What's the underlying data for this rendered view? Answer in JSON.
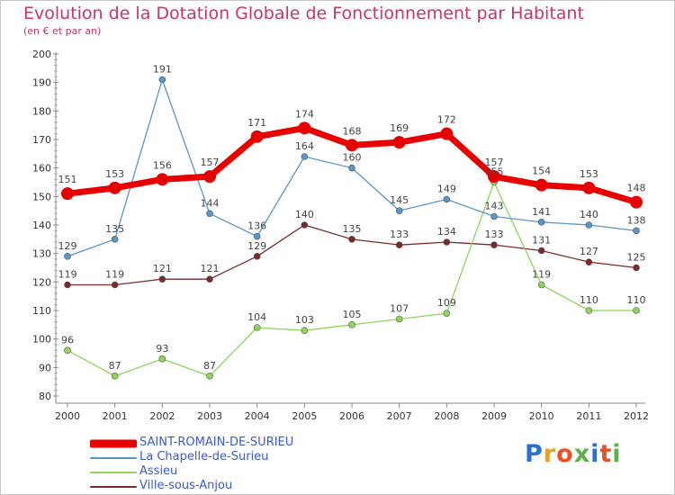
{
  "header": {
    "title": "Evolution de la Dotation Globale de Fonctionnement par Habitant",
    "subtitle": "(en € et par an)"
  },
  "logo": {
    "text": "Proxiti",
    "colors": [
      "#2f6ecb",
      "#e8a12a",
      "#5db04a",
      "#e8502a"
    ]
  },
  "chart_data": {
    "type": "line",
    "title": "Evolution de la Dotation Globale de Fonctionnement par Habitant",
    "subtitle": "(en € et par an)",
    "xlabel": "",
    "ylabel": "",
    "x": [
      "2000",
      "2001",
      "2002",
      "2003",
      "2004",
      "2005",
      "2006",
      "2007",
      "2008",
      "2009",
      "2010",
      "2011",
      "2012"
    ],
    "ylim": [
      80,
      200
    ],
    "yticks": [
      80,
      90,
      100,
      110,
      120,
      130,
      140,
      150,
      160,
      170,
      180,
      190,
      200
    ],
    "grid": false,
    "legend_position": "bottom-left",
    "series": [
      {
        "name": "SAINT-ROMAIN-DE-SURIEU",
        "color": "#e60000",
        "width": 7,
        "marker": 7,
        "values": [
          151,
          153,
          156,
          157,
          171,
          174,
          168,
          169,
          172,
          157,
          154,
          153,
          148
        ]
      },
      {
        "name": "La Chapelle-de-Surieu",
        "color": "#5a96c8",
        "width": 1.3,
        "marker": 3,
        "values": [
          129,
          135,
          191,
          144,
          136,
          164,
          160,
          145,
          149,
          143,
          141,
          140,
          138
        ]
      },
      {
        "name": "Assieu",
        "color": "#8fd45c",
        "width": 1.3,
        "marker": 3,
        "values": [
          96,
          87,
          93,
          87,
          104,
          103,
          105,
          107,
          109,
          155,
          119,
          110,
          110
        ]
      },
      {
        "name": "Ville-sous-Anjou",
        "color": "#7a2a2a",
        "width": 1.3,
        "marker": 3,
        "values": [
          119,
          119,
          121,
          121,
          129,
          140,
          135,
          133,
          134,
          133,
          131,
          127,
          125
        ]
      }
    ],
    "data_labels": [
      [
        151,
        153,
        156,
        157,
        171,
        174,
        168,
        169,
        172,
        157,
        154,
        153,
        148
      ],
      [
        129,
        135,
        191,
        144,
        136,
        164,
        160,
        145,
        149,
        143,
        141,
        140,
        138
      ],
      [
        96,
        87,
        93,
        87,
        104,
        103,
        105,
        107,
        109,
        155,
        119,
        110,
        110
      ],
      [
        119,
        119,
        121,
        121,
        129,
        140,
        135,
        133,
        134,
        133,
        131,
        127,
        125
      ]
    ]
  }
}
